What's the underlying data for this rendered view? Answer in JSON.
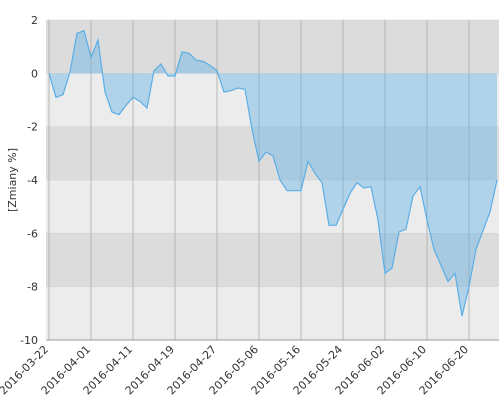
{
  "chart_data": {
    "type": "area",
    "y_label": "[Zmiany %]",
    "categories": [
      "2016-03-22",
      null,
      null,
      null,
      null,
      null,
      "2016-04-01",
      null,
      null,
      null,
      null,
      null,
      "2016-04-11",
      null,
      null,
      null,
      null,
      null,
      "2016-04-19",
      null,
      null,
      null,
      null,
      null,
      "2016-04-27",
      null,
      null,
      null,
      null,
      null,
      "2016-05-06",
      null,
      null,
      null,
      null,
      null,
      "2016-05-16",
      null,
      null,
      null,
      null,
      null,
      "2016-05-24",
      null,
      null,
      null,
      null,
      null,
      "2016-06-02",
      null,
      null,
      null,
      null,
      null,
      "2016-06-10",
      null,
      null,
      null,
      null,
      null,
      "2016-06-20",
      null,
      null,
      null,
      null
    ],
    "values": [
      0,
      -0.9,
      -0.8,
      0.05,
      1.5,
      1.6,
      0.6,
      1.25,
      -0.7,
      -1.45,
      -1.55,
      -1.2,
      -0.9,
      -1.05,
      -1.3,
      0.1,
      0.35,
      -0.1,
      -0.1,
      0.8,
      0.75,
      0.5,
      0.45,
      0.3,
      0.1,
      -0.7,
      -0.65,
      -0.55,
      -0.6,
      -2.1,
      -3.3,
      -2.95,
      -3.1,
      -4.0,
      -4.4,
      -4.4,
      -4.4,
      -3.3,
      -3.75,
      -4.1,
      -5.7,
      -5.7,
      -5.1,
      -4.5,
      -4.1,
      -4.3,
      -4.25,
      -5.5,
      -7.5,
      -7.3,
      -5.95,
      -5.85,
      -4.6,
      -4.25,
      -5.5,
      -6.6,
      -7.2,
      -7.8,
      -7.5,
      -9.1,
      -8.0,
      -6.6,
      -5.9,
      -5.2,
      -4.0
    ],
    "color": "#5aaee6",
    "ylim": [
      -10,
      2
    ],
    "yticks": [
      -10,
      -8,
      -6,
      -4,
      -2,
      0,
      2
    ],
    "band_colors": [
      "#dcdcdc",
      "#ececec"
    ]
  }
}
